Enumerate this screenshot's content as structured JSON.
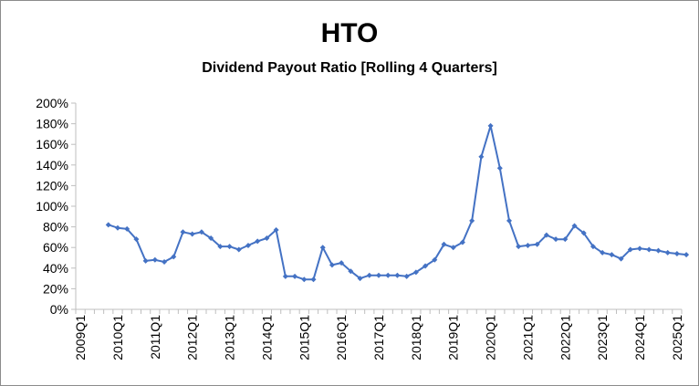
{
  "chart_data": {
    "type": "line",
    "title": "HTO",
    "subtitle": "Dividend Payout Ratio [Rolling 4 Quarters]",
    "xlabel": "",
    "ylabel": "",
    "ylim": [
      0,
      200
    ],
    "y_unit": "%",
    "y_ticks": [
      "0%",
      "20%",
      "40%",
      "60%",
      "80%",
      "100%",
      "120%",
      "140%",
      "160%",
      "180%",
      "200%"
    ],
    "x_tick_labels": [
      "2009Q1",
      "2010Q1",
      "2011Q1",
      "2012Q1",
      "2013Q1",
      "2014Q1",
      "2015Q1",
      "2016Q1",
      "2017Q1",
      "2018Q1",
      "2019Q1",
      "2020Q1",
      "2021Q1",
      "2022Q1",
      "2023Q1",
      "2024Q1",
      "2025Q1"
    ],
    "grid": false,
    "legend": "none",
    "color": "#4472c4",
    "series": [
      {
        "x": [
          "2009Q4",
          "2010Q1",
          "2010Q2",
          "2010Q3",
          "2010Q4",
          "2011Q1",
          "2011Q2",
          "2011Q3",
          "2011Q4",
          "2012Q1",
          "2012Q2",
          "2012Q3",
          "2012Q4",
          "2013Q1",
          "2013Q2",
          "2013Q3",
          "2013Q4",
          "2014Q1",
          "2014Q2",
          "2014Q3",
          "2014Q4",
          "2015Q1",
          "2015Q2",
          "2015Q3",
          "2015Q4",
          "2016Q1",
          "2016Q2",
          "2016Q3",
          "2016Q4",
          "2017Q1",
          "2017Q2",
          "2017Q3",
          "2017Q4",
          "2018Q1",
          "2018Q2",
          "2018Q3",
          "2018Q4",
          "2019Q1",
          "2019Q2",
          "2019Q3",
          "2019Q4",
          "2020Q1",
          "2020Q2",
          "2020Q3",
          "2020Q4",
          "2021Q1",
          "2021Q2",
          "2021Q3",
          "2021Q4",
          "2022Q1",
          "2022Q2",
          "2022Q3",
          "2022Q4",
          "2023Q1",
          "2023Q2",
          "2023Q3",
          "2023Q4",
          "2024Q1",
          "2024Q2",
          "2024Q3",
          "2024Q4",
          "2025Q1",
          "2025Q2"
        ],
        "values": [
          82,
          79,
          78,
          68,
          47,
          48,
          46,
          51,
          75,
          73,
          75,
          69,
          61,
          61,
          58,
          62,
          66,
          69,
          77,
          32,
          32,
          29,
          29,
          60,
          43,
          45,
          37,
          30,
          33,
          33,
          33,
          33,
          32,
          36,
          42,
          48,
          63,
          60,
          65,
          86,
          148,
          178,
          137,
          86,
          61,
          62,
          63,
          72,
          68,
          68,
          81,
          74,
          61,
          55,
          53,
          49,
          58,
          59,
          58,
          57,
          55,
          54,
          53
        ]
      }
    ]
  }
}
